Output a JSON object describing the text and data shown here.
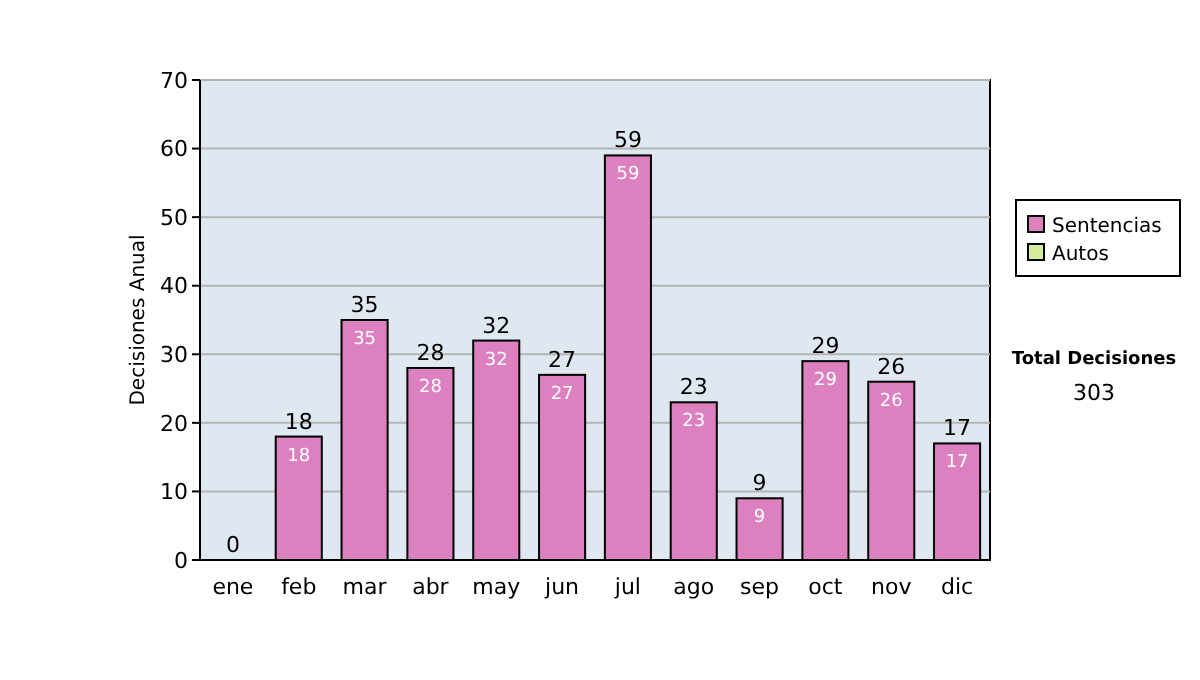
{
  "chart_data": {
    "type": "bar",
    "stacked": true,
    "ylabel": "Decisiones Anual",
    "categories": [
      "ene",
      "feb",
      "mar",
      "abr",
      "may",
      "jun",
      "jul",
      "ago",
      "sep",
      "oct",
      "nov",
      "dic"
    ],
    "series": [
      {
        "name": "Sentencias",
        "color": "#dc80c0",
        "values": [
          0,
          18,
          35,
          28,
          32,
          27,
          59,
          23,
          9,
          29,
          26,
          17
        ],
        "value_labels": [
          null,
          "18",
          "35",
          "28",
          "32",
          "27",
          "59",
          "23",
          "9",
          "29",
          "26",
          "17"
        ]
      },
      {
        "name": "Autos",
        "color": "#d4ec9c",
        "values": [
          0,
          0,
          0,
          0,
          0,
          0,
          0,
          0,
          0,
          0,
          0,
          0
        ]
      }
    ],
    "totals": [
      "0",
      "18",
      "35",
      "28",
      "32",
      "27",
      "59",
      "23",
      "9",
      "29",
      "26",
      "17"
    ],
    "ylim": [
      0,
      70
    ],
    "yticks": [
      0,
      10,
      20,
      30,
      40,
      50,
      60,
      70
    ],
    "grid": "y",
    "legend": "right",
    "annotations": [
      "Total Decisiones",
      "303"
    ]
  }
}
